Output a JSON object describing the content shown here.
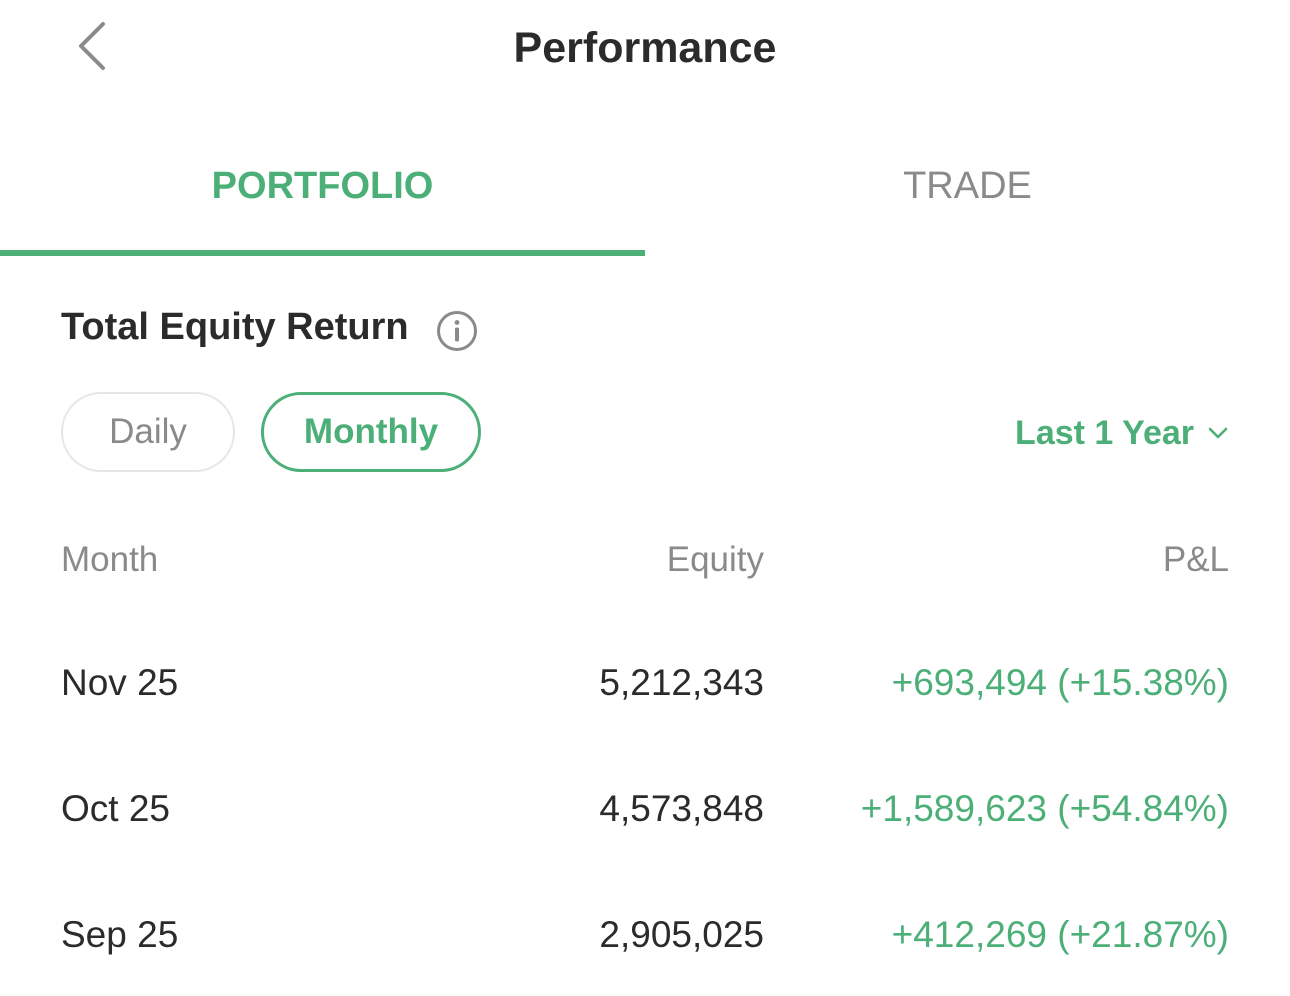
{
  "header": {
    "title": "Performance",
    "back_icon": "chevron-left-icon"
  },
  "tabs": [
    {
      "label": "PORTFOLIO",
      "active": true
    },
    {
      "label": "TRADE",
      "active": false
    }
  ],
  "section": {
    "title": "Total Equity Return",
    "info_icon": "info-icon"
  },
  "period_toggle": {
    "options": [
      {
        "label": "Daily",
        "selected": false
      },
      {
        "label": "Monthly",
        "selected": true
      }
    ]
  },
  "range": {
    "label": "Last 1 Year",
    "icon": "chevron-down-icon"
  },
  "table": {
    "headers": {
      "month": "Month",
      "equity": "Equity",
      "pl": "P&L"
    },
    "rows": [
      {
        "month": "Nov 25",
        "equity": "5,212,343",
        "pl": "+693,494 (+15.38%)"
      },
      {
        "month": "Oct 25",
        "equity": "4,573,848",
        "pl": "+1,589,623 (+54.84%)"
      },
      {
        "month": "Sep 25",
        "equity": "2,905,025",
        "pl": "+412,269 (+21.87%)"
      }
    ]
  },
  "colors": {
    "accent": "#4caf78",
    "text": "#2b2b2b",
    "muted": "#8a8a8a"
  }
}
